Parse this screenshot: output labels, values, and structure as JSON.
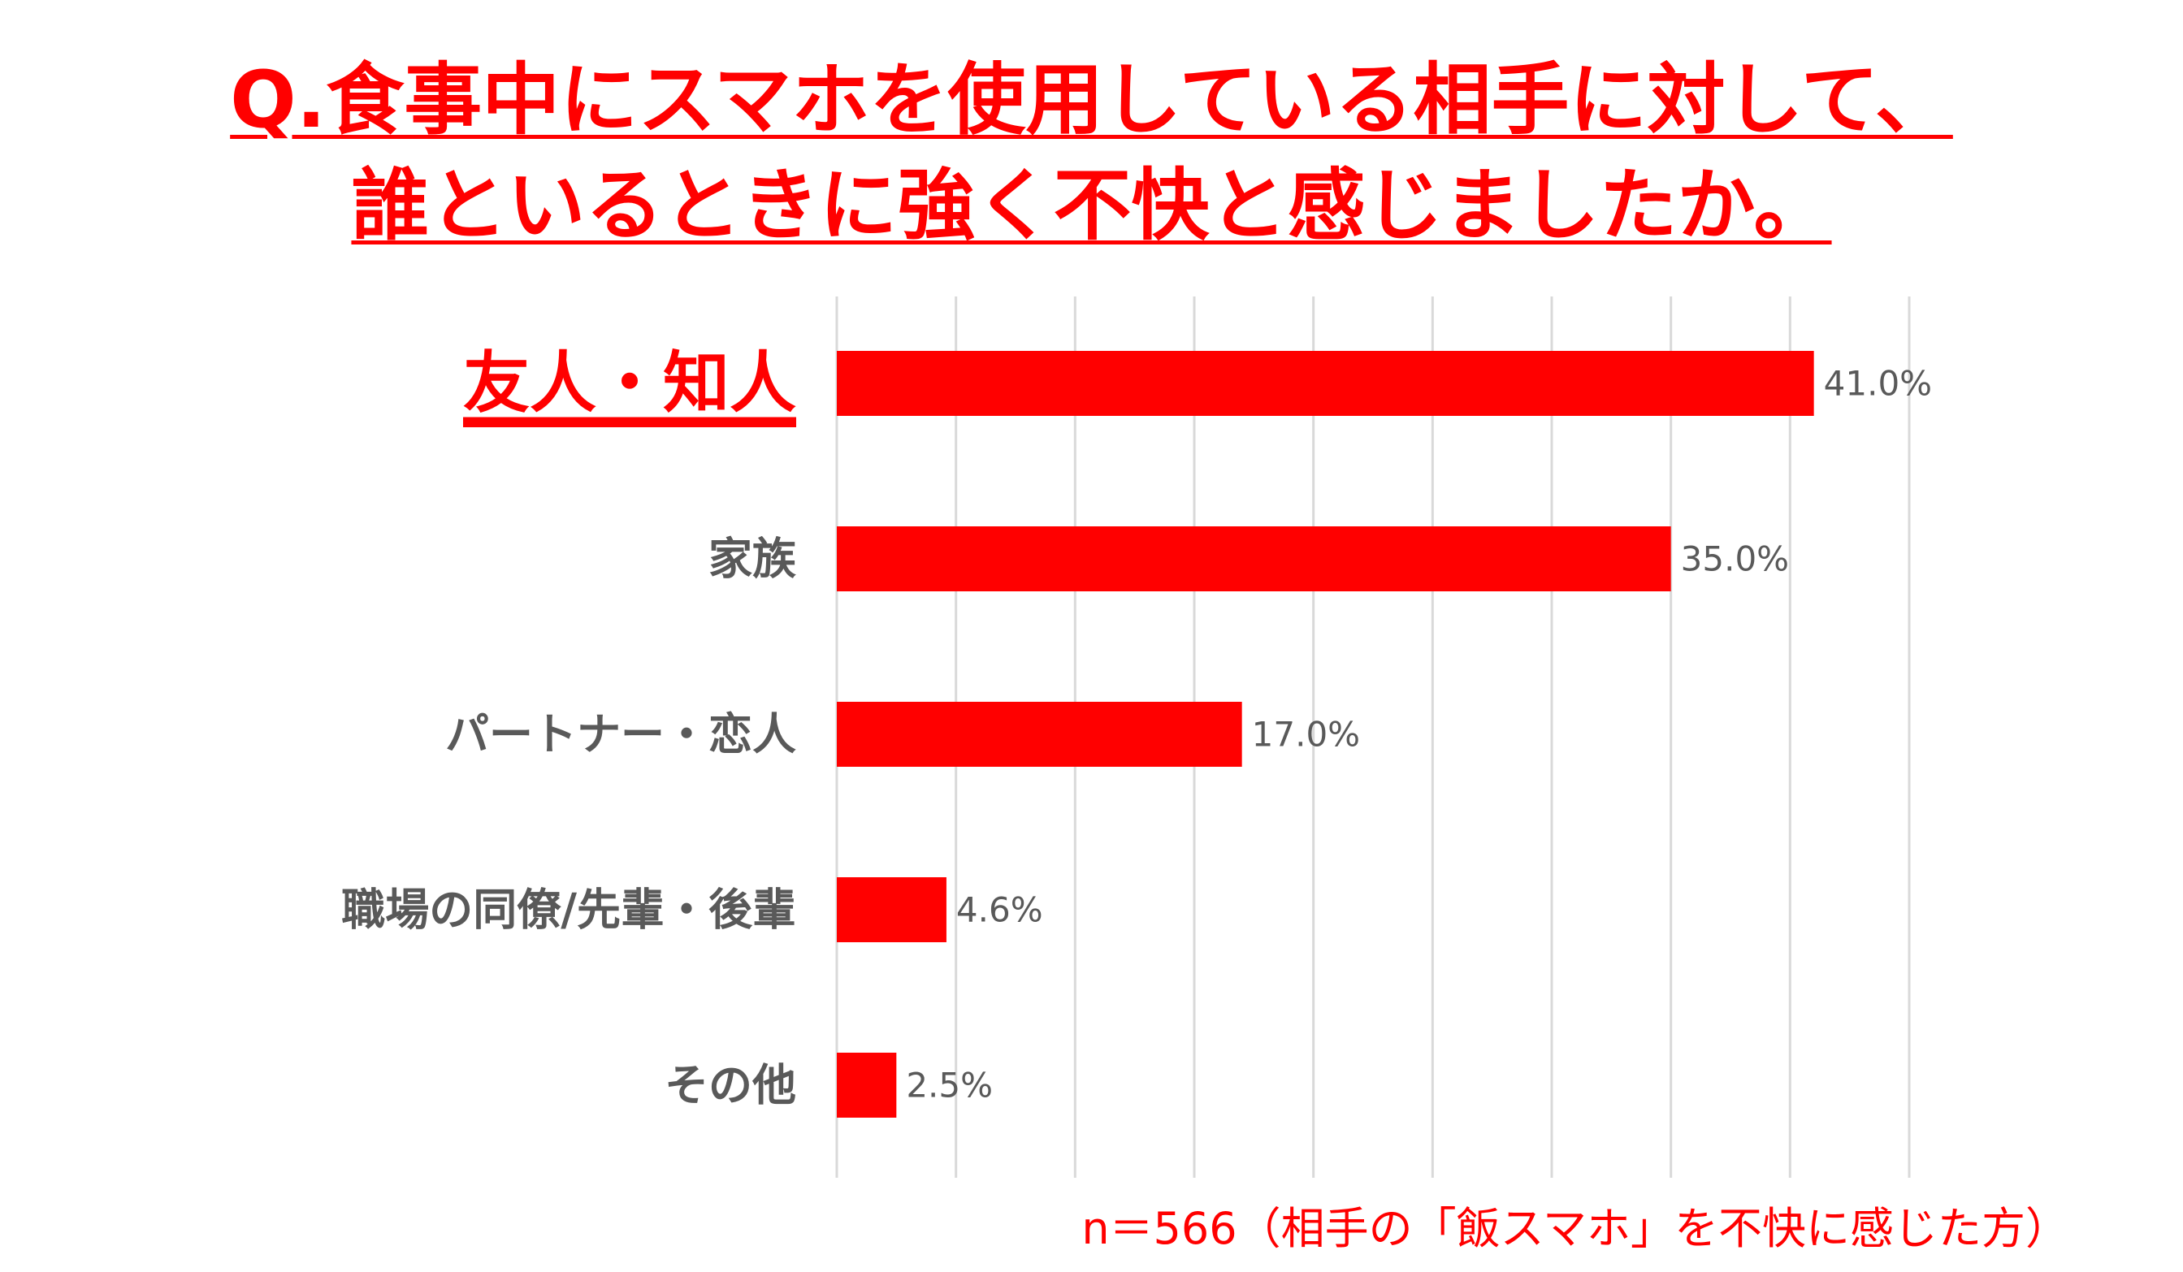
{
  "title": {
    "line1": "Q.食事中にスマホを使用している相手に対して、",
    "line2": "誰といるときに強く不快と感じましたか。"
  },
  "footnote": "n＝566（相手の「飯スマホ」を不快に感じた方）",
  "colors": {
    "bar": "#ff0000",
    "highlight": "#ff0000",
    "label": "#595959",
    "grid": "#d9d9d9"
  },
  "chart_data": {
    "type": "bar",
    "orientation": "horizontal",
    "categories": [
      "友人・知人",
      "家族",
      "パートナー・恋人",
      "職場の同僚/先輩・後輩",
      "その他"
    ],
    "values": [
      41.0,
      35.0,
      17.0,
      4.6,
      2.5
    ],
    "value_labels": [
      "41.0%",
      "35.0%",
      "17.0%",
      "4.6%",
      "2.5%"
    ],
    "highlight_category": "友人・知人",
    "xlim": [
      0,
      45
    ],
    "grid_step": 5,
    "grid": true,
    "legend": "none"
  }
}
